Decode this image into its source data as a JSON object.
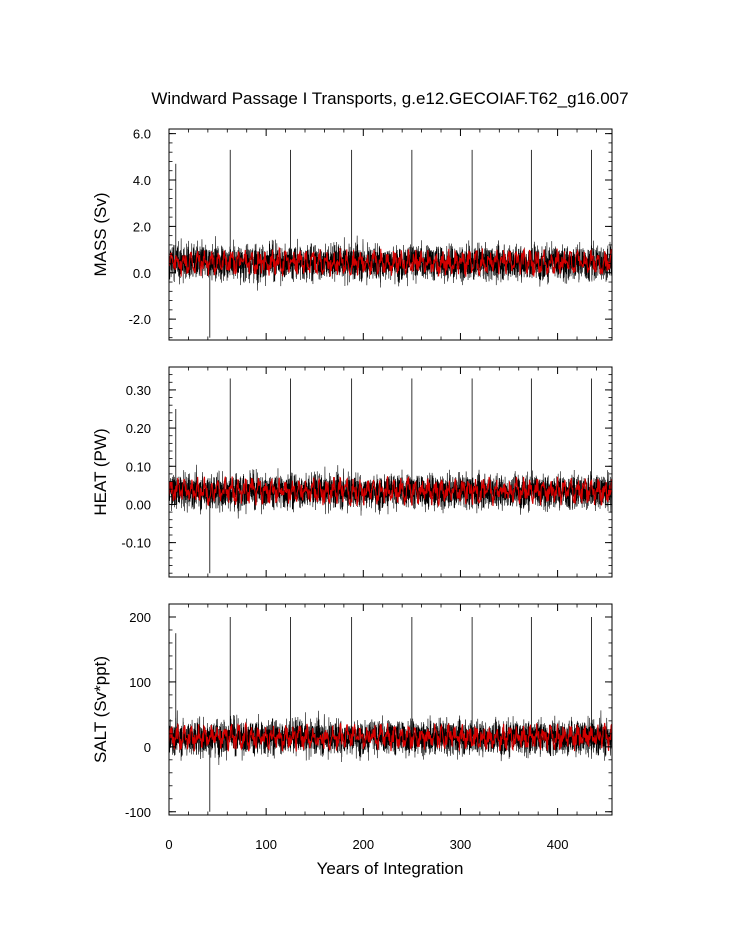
{
  "figure": {
    "title": "Windward Passage I Transports, g.e12.GECOIAF.T62_g16.007",
    "xlabel": "Years of Integration",
    "x_ticks": [
      "0",
      "100",
      "200",
      "300",
      "400"
    ]
  },
  "chart_data": [
    {
      "type": "line",
      "panel": "mass",
      "ylabel": "MASS (Sv)",
      "xlim": [
        0,
        456
      ],
      "ylim": [
        -2.9,
        6.2
      ],
      "y_ticks": [
        6.0,
        4.0,
        2.0,
        0.0,
        -2.0
      ],
      "y_tick_labels": [
        "6.0",
        "4.0",
        "2.0",
        "0.0",
        "-2.0"
      ],
      "series": [
        {
          "kind": "monthly",
          "color": "#000000",
          "mean": 0.45,
          "noise": 1.05,
          "min": -2.6,
          "max": 5.3,
          "spikes": [
            [
              7,
              4.7
            ],
            [
              63,
              5.3
            ],
            [
              125,
              5.3
            ],
            [
              188,
              5.3
            ],
            [
              250,
              5.3
            ],
            [
              312,
              5.3
            ],
            [
              373,
              5.3
            ],
            [
              435,
              5.3
            ],
            [
              42,
              -2.8
            ]
          ]
        },
        {
          "kind": "annual",
          "color": "#d40000",
          "mean": 0.45,
          "amplitude": 0.45
        }
      ]
    },
    {
      "type": "line",
      "panel": "heat",
      "ylabel": "HEAT (PW)",
      "xlim": [
        0,
        456
      ],
      "ylim": [
        -0.19,
        0.36
      ],
      "y_ticks": [
        0.3,
        0.2,
        0.1,
        0.0,
        -0.1
      ],
      "y_tick_labels": [
        "0.30",
        "0.20",
        "0.10",
        "0.00",
        "-0.10"
      ],
      "series": [
        {
          "kind": "monthly",
          "color": "#000000",
          "mean": 0.035,
          "noise": 0.062,
          "min": -0.17,
          "max": 0.33,
          "spikes": [
            [
              7,
              0.25
            ],
            [
              63,
              0.33
            ],
            [
              125,
              0.33
            ],
            [
              188,
              0.33
            ],
            [
              250,
              0.33
            ],
            [
              312,
              0.33
            ],
            [
              373,
              0.33
            ],
            [
              435,
              0.33
            ],
            [
              42,
              -0.18
            ]
          ]
        },
        {
          "kind": "annual",
          "color": "#d40000",
          "mean": 0.035,
          "amplitude": 0.028
        }
      ]
    },
    {
      "type": "line",
      "panel": "salt",
      "ylabel": "SALT (Sv*ppt)",
      "xlim": [
        0,
        456
      ],
      "ylim": [
        -105,
        220
      ],
      "y_ticks": [
        200,
        100,
        0,
        -100
      ],
      "y_tick_labels": [
        "200",
        "100",
        "0",
        "-100"
      ],
      "series": [
        {
          "kind": "monthly",
          "color": "#000000",
          "mean": 15,
          "noise": 37,
          "min": -90,
          "max": 200,
          "spikes": [
            [
              7,
              175
            ],
            [
              63,
              200
            ],
            [
              125,
              200
            ],
            [
              188,
              200
            ],
            [
              250,
              200
            ],
            [
              312,
              200
            ],
            [
              373,
              200
            ],
            [
              435,
              200
            ],
            [
              42,
              -100
            ]
          ]
        },
        {
          "kind": "annual",
          "color": "#d40000",
          "mean": 15,
          "amplitude": 16
        }
      ]
    }
  ]
}
